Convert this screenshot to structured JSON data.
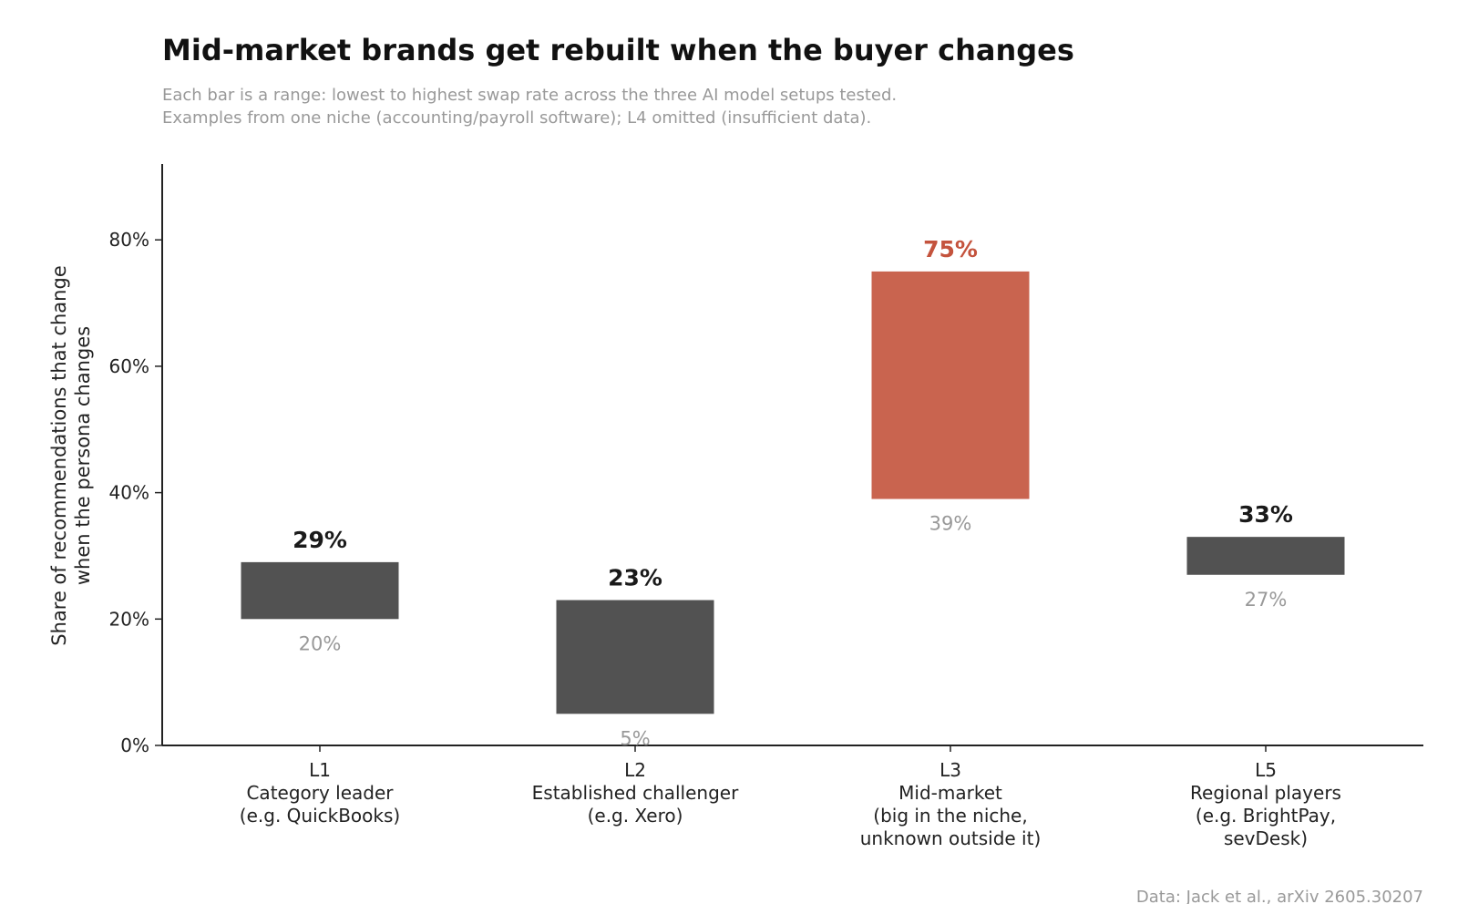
{
  "chart_data": {
    "type": "bar",
    "title": "Mid-market brands get rebuilt when the buyer changes",
    "subtitle": [
      "Each bar is a range: lowest to highest swap rate across the three AI model setups tested.",
      "Examples from one niche (accounting/payroll software); L4 omitted (insufficient data)."
    ],
    "ylabel": [
      "Share of recommendations that change",
      "when the persona changes"
    ],
    "ylim": [
      0,
      92
    ],
    "yticks": [
      0,
      20,
      40,
      60,
      80
    ],
    "yticklabels": [
      "0%",
      "20%",
      "40%",
      "60%",
      "80%"
    ],
    "grid": false,
    "categories": [
      {
        "code": "L1",
        "lines": [
          "L1",
          "Category leader",
          "(e.g. QuickBooks)"
        ],
        "low": 20,
        "high": 29,
        "low_label": "20%",
        "high_label": "29%",
        "highlight": false
      },
      {
        "code": "L2",
        "lines": [
          "L2",
          "Established challenger",
          "(e.g. Xero)"
        ],
        "low": 5,
        "high": 23,
        "low_label": "5%",
        "high_label": "23%",
        "highlight": false
      },
      {
        "code": "L3",
        "lines": [
          "L3",
          "Mid-market",
          "(big in the niche,",
          "unknown outside it)"
        ],
        "low": 39,
        "high": 75,
        "low_label": "39%",
        "high_label": "75%",
        "highlight": true
      },
      {
        "code": "L5",
        "lines": [
          "L5",
          "Regional players",
          "(e.g. BrightPay,",
          "sevDesk)"
        ],
        "low": 27,
        "high": 33,
        "low_label": "27%",
        "high_label": "33%",
        "highlight": false
      }
    ],
    "colors": {
      "bar": "#525252",
      "highlight_bar": "#c9644f",
      "high_label": "#1a1a1a",
      "highlight_label": "#c4533d",
      "low_label": "#999999",
      "axis": "#222222"
    },
    "source": "Data: Jack et al., arXiv 2605.30207"
  }
}
